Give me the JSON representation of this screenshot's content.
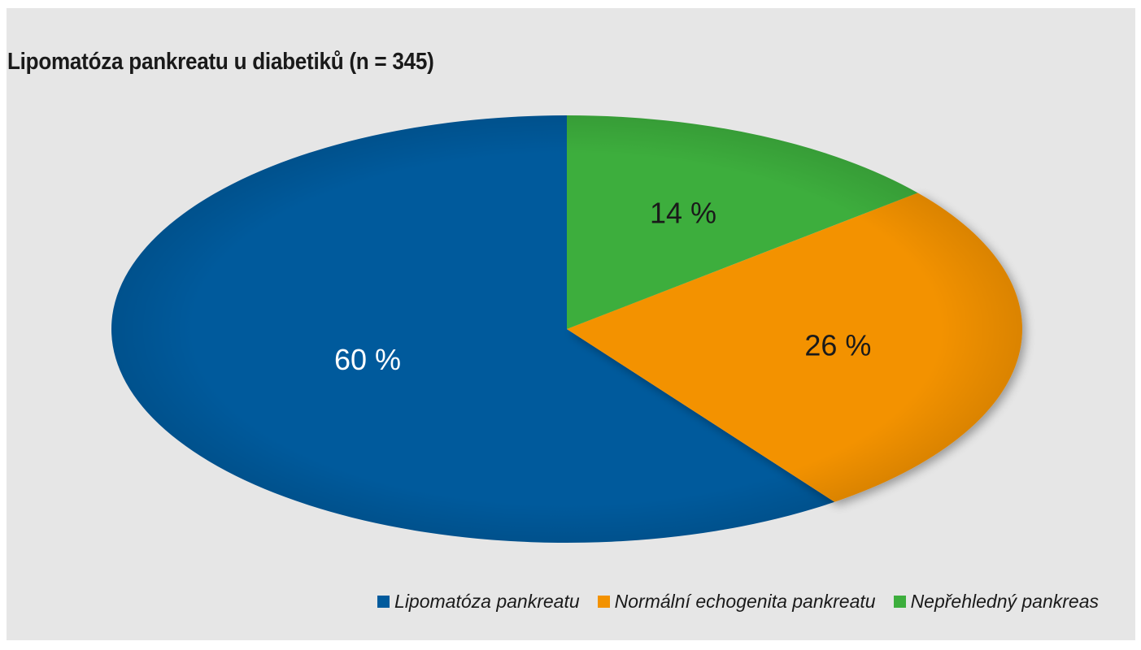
{
  "chart_data": {
    "type": "pie",
    "title": "Lipomatóza pankreatu u diabetiků (n = 345)",
    "categories": [
      "Lipomatóza pankreatu",
      "Normální echogenita pankreatu",
      "Nepřehledný pankreas"
    ],
    "values": [
      60,
      26,
      14
    ],
    "labels": [
      "60 %",
      "26 %",
      "14 %"
    ],
    "colors": [
      "#005a9c",
      "#f39200",
      "#3dae3d"
    ],
    "label_colors": [
      "#ffffff",
      "#1a1a1a",
      "#1a1a1a"
    ],
    "legend_position": "bottom-right"
  }
}
